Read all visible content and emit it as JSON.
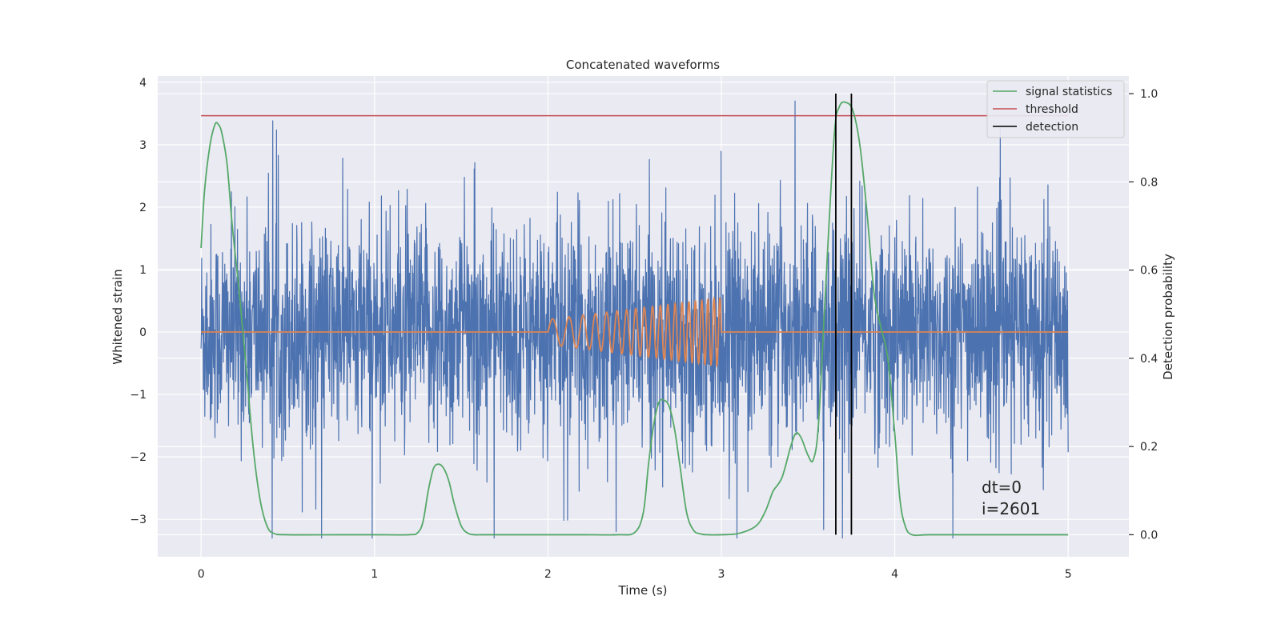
{
  "chart_data": {
    "type": "line",
    "title": "Concatenated waveforms",
    "xlabel": "Time (s)",
    "ylabel": "Whitened strain",
    "y2label": "Detection probability",
    "xlim": [
      -0.25,
      5.35
    ],
    "ylim": [
      -3.6,
      4.1
    ],
    "y2lim": [
      -0.05,
      1.04
    ],
    "x_ticks": [
      0,
      1,
      2,
      3,
      4,
      5
    ],
    "y_ticks": [
      -3,
      -2,
      -1,
      0,
      1,
      2,
      3,
      4
    ],
    "y2_ticks": [
      0.0,
      0.2,
      0.4,
      0.6,
      0.8,
      1.0
    ],
    "y_tick_labels": [
      "−3",
      "−2",
      "−1",
      "0",
      "1",
      "2",
      "3",
      "4"
    ],
    "y2_tick_labels": [
      "0.0",
      "0.2",
      "0.4",
      "0.6",
      "0.8",
      "1.0"
    ],
    "grid": true,
    "legend_position": "top-right",
    "colors": {
      "background": "#eaeaf2",
      "grid": "#ffffff",
      "strain": "#4c72b0",
      "template": "#dd8452",
      "signal_statistics": "#55a868",
      "threshold": "#c44e52",
      "detection": "#000000"
    },
    "series": [
      {
        "name": "",
        "axis": "left",
        "description_points": "whitened strain noise, ~5000 samples over 0-5 s, amplitude mostly within -2.5..2.7",
        "x_range": [
          0,
          5
        ]
      },
      {
        "name": "",
        "axis": "left",
        "chirp": {
          "start": 2.0,
          "end": 3.0,
          "amp_start": 0.2,
          "amp_end": 0.55,
          "f_start": 9,
          "f_end": 30
        }
      },
      {
        "name": "signal statistics",
        "axis": "right",
        "x": [
          0.0,
          0.02,
          0.05,
          0.08,
          0.1,
          0.12,
          0.15,
          0.18,
          0.22,
          0.26,
          0.3,
          0.34,
          0.38,
          0.42,
          0.5,
          0.8,
          1.0,
          1.2,
          1.25,
          1.28,
          1.31,
          1.34,
          1.37,
          1.4,
          1.43,
          1.46,
          1.5,
          1.54,
          1.58,
          1.62,
          1.8,
          2.0,
          2.2,
          2.4,
          2.5,
          2.55,
          2.58,
          2.61,
          2.64,
          2.67,
          2.7,
          2.73,
          2.76,
          2.8,
          2.84,
          2.88,
          2.92,
          3.0,
          3.1,
          3.2,
          3.25,
          3.28,
          3.3,
          3.35,
          3.4,
          3.43,
          3.46,
          3.5,
          3.53,
          3.56,
          3.6,
          3.65,
          3.68,
          3.72,
          3.76,
          3.8,
          3.84,
          3.88,
          3.92,
          3.96,
          4.0,
          4.03,
          4.06,
          4.1,
          4.2,
          4.5,
          4.8,
          5.0
        ],
        "values": [
          0.65,
          0.78,
          0.88,
          0.93,
          0.93,
          0.91,
          0.84,
          0.7,
          0.55,
          0.38,
          0.2,
          0.08,
          0.02,
          0.003,
          0.0,
          0.0,
          0.0,
          0.0,
          0.005,
          0.03,
          0.1,
          0.15,
          0.16,
          0.15,
          0.12,
          0.07,
          0.02,
          0.003,
          0.0,
          0.0,
          0.0,
          0.0,
          0.0,
          0.0,
          0.005,
          0.05,
          0.16,
          0.25,
          0.3,
          0.305,
          0.29,
          0.24,
          0.16,
          0.05,
          0.01,
          0.002,
          0.0,
          0.0,
          0.003,
          0.02,
          0.05,
          0.08,
          0.1,
          0.13,
          0.2,
          0.23,
          0.22,
          0.18,
          0.17,
          0.25,
          0.55,
          0.9,
          0.97,
          0.98,
          0.96,
          0.88,
          0.73,
          0.55,
          0.47,
          0.4,
          0.23,
          0.08,
          0.02,
          0.0,
          0.0,
          0.0,
          0.0,
          0.0
        ]
      },
      {
        "name": "threshold",
        "axis": "right",
        "x": [
          0,
          5
        ],
        "values": [
          0.95,
          0.95
        ]
      },
      {
        "name": "detection",
        "axis": "right",
        "vlines_x": [
          3.66,
          3.75
        ],
        "ymin": 0.0,
        "ymax": 1.0
      }
    ],
    "annotations": [
      "dt=0",
      "i=2601"
    ]
  }
}
